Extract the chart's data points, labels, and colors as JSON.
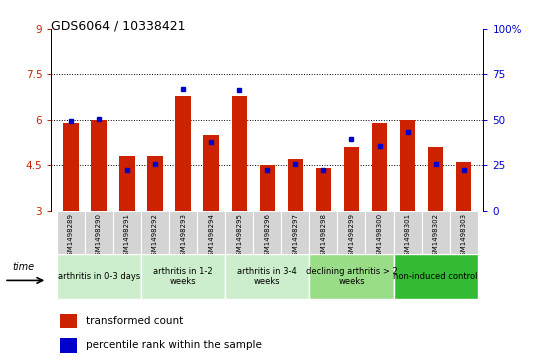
{
  "title": "GDS6064 / 10338421",
  "samples": [
    "GSM1498289",
    "GSM1498290",
    "GSM1498291",
    "GSM1498292",
    "GSM1498293",
    "GSM1498294",
    "GSM1498295",
    "GSM1498296",
    "GSM1498297",
    "GSM1498298",
    "GSM1498299",
    "GSM1498300",
    "GSM1498301",
    "GSM1498302",
    "GSM1498303"
  ],
  "red_values": [
    5.9,
    6.0,
    4.8,
    4.8,
    6.8,
    5.5,
    6.8,
    4.5,
    4.7,
    4.4,
    5.1,
    5.9,
    6.0,
    5.1,
    4.6
  ],
  "blue_values": [
    5.95,
    6.02,
    4.35,
    4.55,
    7.02,
    5.28,
    6.98,
    4.35,
    4.55,
    4.35,
    5.38,
    5.12,
    5.58,
    4.55,
    4.35
  ],
  "y_min": 3.0,
  "y_max": 9.0,
  "y_ticks_left": [
    3,
    4.5,
    6,
    7.5,
    9
  ],
  "y_ticks_left_labels": [
    "3",
    "4.5",
    "6",
    "7.5",
    "9"
  ],
  "y_ticks_right": [
    0,
    25,
    50,
    75,
    100
  ],
  "y_ticks_right_labels": [
    "0",
    "25",
    "50",
    "75",
    "100%"
  ],
  "bar_color_red": "#cc2200",
  "bar_color_blue": "#0000cc",
  "bar_width": 0.55,
  "grid_yticks": [
    4.5,
    6.0,
    7.5
  ],
  "tick_label_color_left": "#cc2200",
  "tick_label_color_right": "#0000cc",
  "group_spans": [
    {
      "start": 0,
      "end": 3,
      "label": "arthritis in 0-3 days",
      "color": "#cceecc"
    },
    {
      "start": 3,
      "end": 6,
      "label": "arthritis in 1-2\nweeks",
      "color": "#cceecc"
    },
    {
      "start": 6,
      "end": 9,
      "label": "arthritis in 3-4\nweeks",
      "color": "#cceecc"
    },
    {
      "start": 9,
      "end": 12,
      "label": "declining arthritis > 2\nweeks",
      "color": "#99dd88"
    },
    {
      "start": 12,
      "end": 15,
      "label": "non-induced control",
      "color": "#33bb33"
    }
  ]
}
